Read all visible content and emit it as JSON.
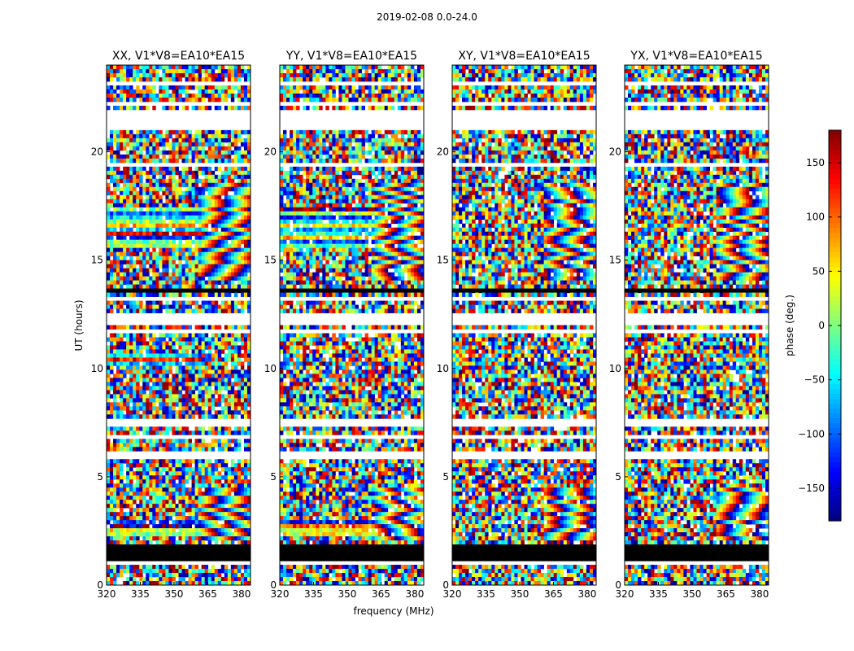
{
  "figure": {
    "suptitle": "2019-02-08 0.0-24.0",
    "xlabel": "frequency (MHz)",
    "ylabel": "UT (hours)",
    "colorbar_label": "phase (deg.)",
    "colorbar_ticks": [
      {
        "value": 150,
        "label": "150"
      },
      {
        "value": 100,
        "label": "100"
      },
      {
        "value": 50,
        "label": "50"
      },
      {
        "value": 0,
        "label": "0"
      },
      {
        "value": -50,
        "label": "−50"
      },
      {
        "value": -100,
        "label": "−100"
      },
      {
        "value": -150,
        "label": "−150"
      }
    ],
    "colorbar_range": [
      -180,
      180
    ],
    "colormap": "jet"
  },
  "chart_data": [
    {
      "type": "heatmap",
      "title": "XX, V1*V8=EA10*EA15",
      "xlim": [
        320,
        384
      ],
      "ylim": [
        0,
        24
      ],
      "xticks": [
        320,
        335,
        350,
        365,
        380
      ],
      "yticks": [
        0,
        5,
        10,
        15,
        20
      ],
      "value_range": [
        -180,
        180
      ],
      "unit": "deg"
    },
    {
      "type": "heatmap",
      "title": "YY, V1*V8=EA10*EA15",
      "xlim": [
        320,
        384
      ],
      "ylim": [
        0,
        24
      ],
      "xticks": [
        320,
        335,
        350,
        365,
        380
      ],
      "yticks": [
        0,
        5,
        10,
        15,
        20
      ],
      "value_range": [
        -180,
        180
      ],
      "unit": "deg"
    },
    {
      "type": "heatmap",
      "title": "XY, V1*V8=EA10*EA15",
      "xlim": [
        320,
        384
      ],
      "ylim": [
        0,
        24
      ],
      "xticks": [
        320,
        335,
        350,
        365,
        380
      ],
      "yticks": [
        0,
        5,
        10,
        15,
        20
      ],
      "value_range": [
        -180,
        180
      ],
      "unit": "deg"
    },
    {
      "type": "heatmap",
      "title": "YX, V1*V8=EA10*EA15",
      "xlim": [
        320,
        384
      ],
      "ylim": [
        0,
        24
      ],
      "xticks": [
        320,
        335,
        350,
        365,
        380
      ],
      "yticks": [
        0,
        5,
        10,
        15,
        20
      ],
      "value_range": [
        -180,
        180
      ],
      "unit": "deg"
    }
  ],
  "colors": {
    "frame": "#000000",
    "missing": "#ffffff",
    "flagged": "#000000"
  }
}
